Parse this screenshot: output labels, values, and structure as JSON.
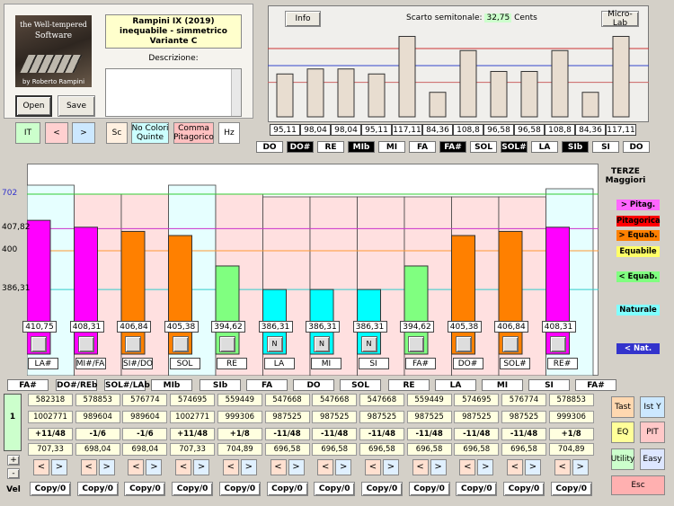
{
  "logo": {
    "line1": "the Well-tempered",
    "line2": "Software",
    "author": "by Roberto Rampini"
  },
  "info": {
    "title1": "Rampini IX (2019)",
    "title2": "inequabile - simmetrico",
    "title3": "Variante C",
    "desc_label": "Descrizione:"
  },
  "buttons": {
    "open": "Open",
    "save": "Save",
    "it": "IT",
    "prev": "<",
    "next": ">",
    "sc": "Sc",
    "no_colori": "No Colori\nQuinte",
    "comma": "Comma\nPitagorico",
    "hz": "Hz",
    "info": "Info",
    "microlab": "Micro-Lab",
    "tast": "Tast",
    "isty": "Ist Y",
    "eq": "EQ",
    "pit": "PIT",
    "utility": "Utility",
    "easy": "Easy",
    "esc": "Esc",
    "plus": "+",
    "minus": "-",
    "vel": "Vel",
    "copy": "Copy/0"
  },
  "top_chart": {
    "scarto_label": "Scarto semitonale:",
    "scarto_value": "32,75",
    "scarto_unit": "Cents",
    "values": [
      "95,11",
      "98,04",
      "98,04",
      "95,11",
      "117,11",
      "84,36",
      "108,8",
      "96,58",
      "96,58",
      "108,8",
      "84,36",
      "117,11"
    ],
    "notes": [
      "DO",
      "DO#",
      "RE",
      "MIb",
      "MI",
      "FA",
      "FA#",
      "SOL",
      "SOL#",
      "LA",
      "SIb",
      "SI",
      "DO"
    ],
    "dark_notes": [
      1,
      3,
      6,
      8,
      10
    ]
  },
  "main_chart": {
    "title1": "TERZE",
    "title2": "Maggiori",
    "yticks": [
      {
        "label": "702",
        "v": 702,
        "color": "#3333cc"
      },
      {
        "label": "407,82",
        "v": 407.82,
        "color": "#000"
      },
      {
        "label": "400",
        "v": 400,
        "color": "#000"
      },
      {
        "label": "386,31",
        "v": 386.31,
        "color": "#000"
      }
    ],
    "values": [
      "410,75",
      "408,31",
      "406,84",
      "405,38",
      "394,62",
      "386,31",
      "386,31",
      "386,31",
      "394,62",
      "405,38",
      "406,84",
      "408,31"
    ],
    "nums": [
      410.75,
      408.31,
      406.84,
      405.38,
      394.62,
      386.31,
      386.31,
      386.31,
      394.62,
      405.38,
      406.84,
      408.31
    ],
    "colors": [
      "#ff00ff",
      "#ff00ff",
      "#ff8000",
      "#ff8000",
      "#80ff80",
      "#00ffff",
      "#00ffff",
      "#00ffff",
      "#80ff80",
      "#ff8000",
      "#ff8000",
      "#ff00ff"
    ],
    "n_marks": [
      "",
      "",
      "",
      "",
      "",
      "N",
      "N",
      "N",
      "",
      "",
      "",
      ""
    ],
    "labels": [
      "LA#",
      "MI#/FA",
      "SI#/DO",
      "SOL",
      "RE",
      "LA",
      "MI",
      "SI",
      "FA#",
      "DO#",
      "SOL#",
      "RE#"
    ],
    "legend": [
      {
        "text": "> Pitag.",
        "bg": "#ff66ff"
      },
      {
        "text": "Pitagorica",
        "bg": "#ff0000"
      },
      {
        "text": "> Equab.",
        "bg": "#ff8000"
      },
      {
        "text": "Equabile",
        "bg": "#ffff66"
      },
      {
        "text": "< Equab.",
        "bg": "#80ff80"
      },
      {
        "text": "Naturale",
        "bg": "#80ffff"
      },
      {
        "text": "< Nat.",
        "bg": "#3333cc"
      }
    ]
  },
  "bottom": {
    "notes": [
      "FA#",
      "DO#/REb",
      "SOL#/LAb",
      "MIb",
      "SIb",
      "FA",
      "DO",
      "SOL",
      "RE",
      "LA",
      "MI",
      "SI",
      "FA#"
    ],
    "row1": [
      "582318",
      "578853",
      "576774",
      "574695",
      "559449",
      "547668",
      "547668",
      "547668",
      "559449",
      "574695",
      "576774",
      "578853"
    ],
    "row2": [
      "1002771",
      "989604",
      "989604",
      "1002771",
      "999306",
      "987525",
      "987525",
      "987525",
      "987525",
      "987525",
      "987525",
      "999306"
    ],
    "row3": [
      "+11/48",
      "-1/6",
      "-1/6",
      "+11/48",
      "+1/8",
      "-11/48",
      "-11/48",
      "-11/48",
      "-11/48",
      "-11/48",
      "-11/48",
      "+1/8"
    ],
    "row4": [
      "707,33",
      "698,04",
      "698,04",
      "707,33",
      "704,89",
      "696,58",
      "696,58",
      "696,58",
      "696,58",
      "696,58",
      "696,58",
      "704,89"
    ],
    "one": "1"
  }
}
